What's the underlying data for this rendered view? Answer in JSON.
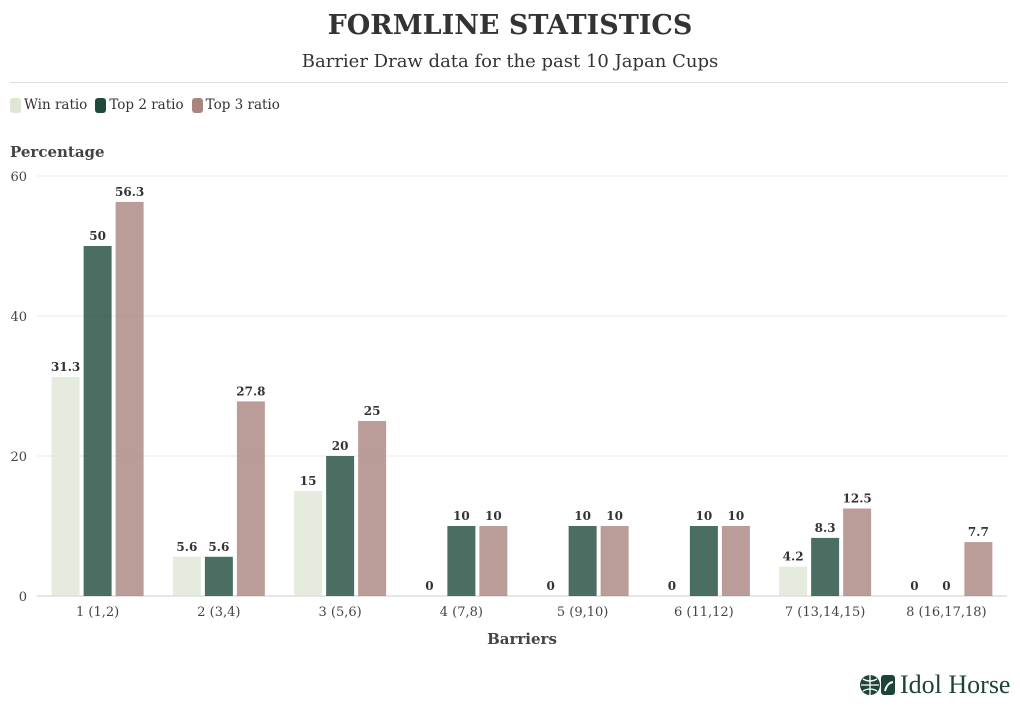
{
  "title": "FORMLINE STATISTICS",
  "subtitle": "Barrier Draw data for the past 10 Japan Cups",
  "logo": "Idol Horse",
  "chart_data": {
    "type": "bar",
    "categories": [
      "1 (1,2)",
      "2 (3,4)",
      "3 (5,6)",
      "4 (7,8)",
      "5 (9,10)",
      "6 (11,12)",
      "7 (13,14,15)",
      "8 (16,17,18)"
    ],
    "series": [
      {
        "name": "Win ratio",
        "color": "#dfe7d4",
        "values": [
          31.3,
          5.6,
          15,
          0,
          0,
          0,
          4.2,
          0
        ]
      },
      {
        "name": "Top 2 ratio",
        "color": "#1e4a3b",
        "values": [
          50,
          5.6,
          20,
          10,
          10,
          10,
          8.3,
          0
        ]
      },
      {
        "name": "Top 3 ratio",
        "color": "#a9857f",
        "values": [
          56.3,
          27.8,
          25,
          10,
          10,
          10,
          12.5,
          7.7
        ]
      }
    ],
    "xlabel": "Barriers",
    "ylabel": "Percentage",
    "ylim": [
      0,
      60
    ],
    "yticks": [
      0,
      20,
      40,
      60
    ],
    "grid": true,
    "legend": "top-left",
    "data_labels": true
  }
}
